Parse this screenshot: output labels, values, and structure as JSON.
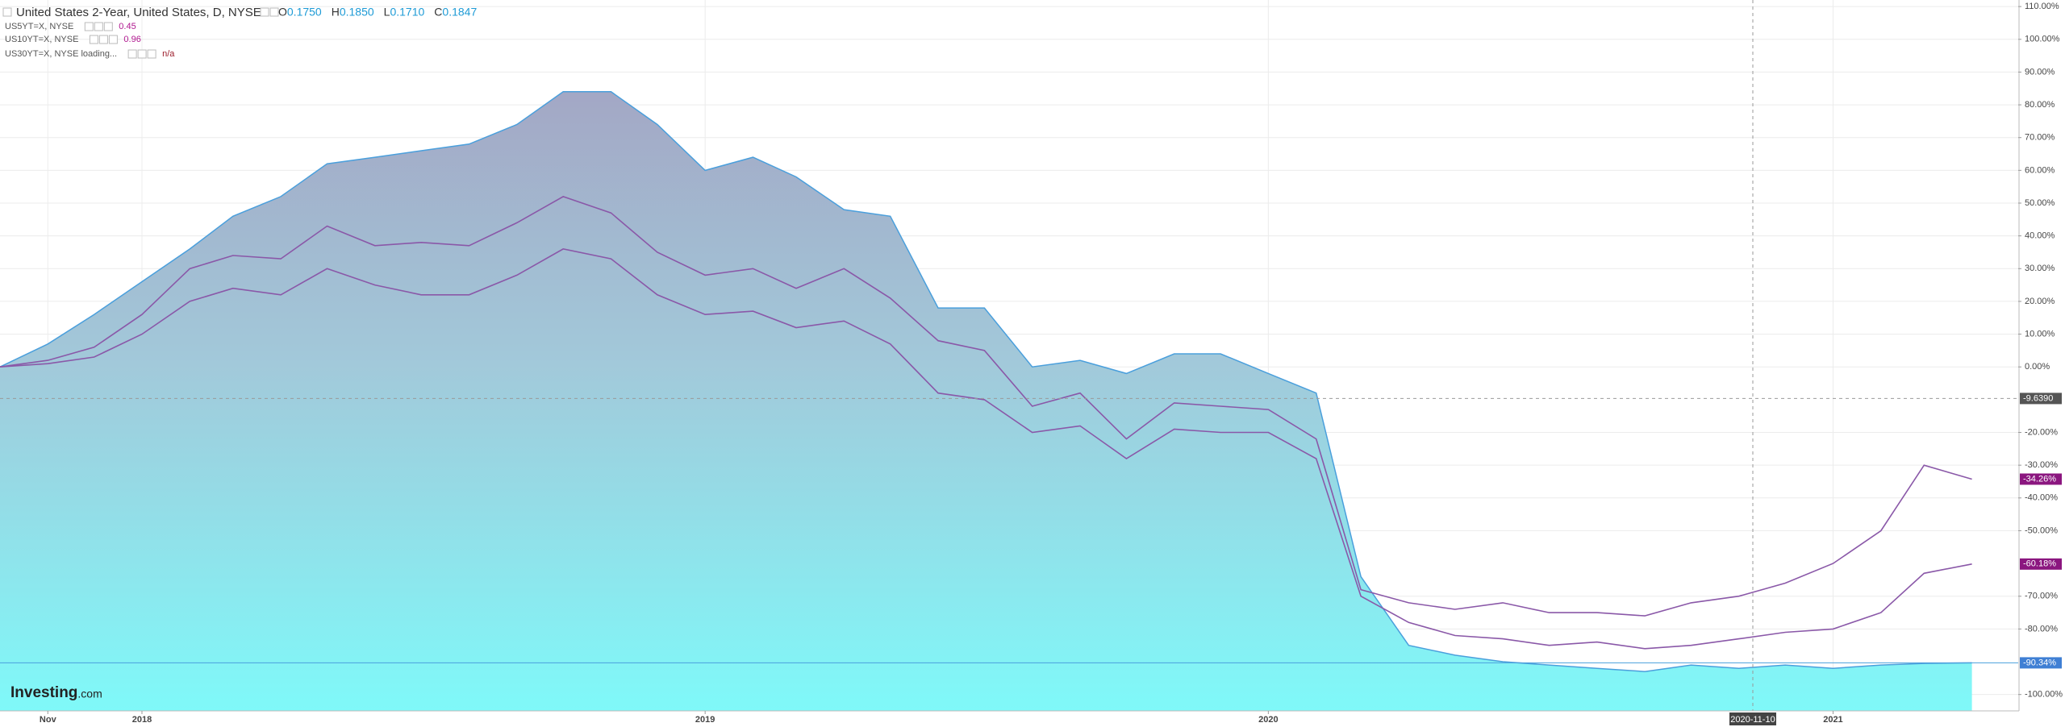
{
  "chart_data": {
    "type": "area",
    "ohlc": [
      {
        "key": "O",
        "value": "0.1750"
      },
      {
        "key": "H",
        "value": "0.1850"
      },
      {
        "key": "L",
        "value": "0.1710"
      },
      {
        "key": "C",
        "value": "0.1847"
      }
    ],
    "x": [
      "2017-10",
      "2017-11",
      "2017-12",
      "2018-01",
      "2018-02",
      "2018-03",
      "2018-04",
      "2018-05",
      "2018-06",
      "2018-07",
      "2018-08",
      "2018-09",
      "2018-10",
      "2018-11",
      "2018-12",
      "2019-01",
      "2019-02",
      "2019-03",
      "2019-04",
      "2019-05",
      "2019-06",
      "2019-07",
      "2019-08",
      "2019-09",
      "2019-10",
      "2019-11",
      "2019-12",
      "2020-01",
      "2020-02",
      "2020-03",
      "2020-04",
      "2020-05",
      "2020-06",
      "2020-07",
      "2020-08",
      "2020-09",
      "2020-10",
      "2020-11",
      "2020-12",
      "2021-01",
      "2021-02",
      "2021-03",
      "2021-04"
    ],
    "xlim": [
      "2017-10",
      "2021-05"
    ],
    "xticks": [
      {
        "value": "2017-11",
        "label": "Nov"
      },
      {
        "value": "2018-01",
        "label": "2018"
      },
      {
        "value": "2019-01",
        "label": "2019"
      },
      {
        "value": "2020-01",
        "label": "2020"
      },
      {
        "value": "2021-01",
        "label": "2021"
      }
    ],
    "ylim": [
      -105,
      112
    ],
    "yticks": [
      {
        "value": 110,
        "label": "110.00%"
      },
      {
        "value": 100,
        "label": "100.00%"
      },
      {
        "value": 90,
        "label": "90.00%"
      },
      {
        "value": 80,
        "label": "80.00%"
      },
      {
        "value": 70,
        "label": "70.00%"
      },
      {
        "value": 60,
        "label": "60.00%"
      },
      {
        "value": 50,
        "label": "50.00%"
      },
      {
        "value": 40,
        "label": "40.00%"
      },
      {
        "value": 30,
        "label": "30.00%"
      },
      {
        "value": 20,
        "label": "20.00%"
      },
      {
        "value": 10,
        "label": "10.00%"
      },
      {
        "value": 0,
        "label": "0.00%"
      },
      {
        "value": -20,
        "label": "-20.00%"
      },
      {
        "value": -30,
        "label": "-30.00%"
      },
      {
        "value": -40,
        "label": "-40.00%"
      },
      {
        "value": -50,
        "label": "-50.00%"
      },
      {
        "value": -70,
        "label": "-70.00%"
      },
      {
        "value": -80,
        "label": "-80.00%"
      },
      {
        "value": -100,
        "label": "-100.00%"
      }
    ],
    "grid": true,
    "series": [
      {
        "name": "United States 2-Year, United States, D, NYSE",
        "style": "area",
        "color": "#4a9fdc",
        "label_color": "#3f7fd4",
        "last_label": "-90.34%",
        "values": [
          0,
          7,
          16,
          26,
          36,
          46,
          52,
          62,
          64,
          66,
          68,
          74,
          84,
          84,
          74,
          60,
          64,
          58,
          48,
          46,
          18,
          18,
          0,
          2,
          -2,
          4,
          4,
          -2,
          -8,
          -64,
          -85,
          -88,
          -90,
          -91,
          -92,
          -93,
          -91,
          -92,
          -91,
          -92,
          -91,
          -90.5,
          -90.34
        ]
      },
      {
        "name": "US5YT=X, NYSE",
        "style": "line",
        "color": "#8a58a8",
        "label_color": "#8b167f",
        "legend_value": "0.45",
        "last_label": "-60.18%",
        "values": [
          0,
          1,
          3,
          10,
          20,
          24,
          22,
          30,
          25,
          22,
          22,
          28,
          36,
          33,
          22,
          16,
          17,
          12,
          14,
          7,
          -8,
          -10,
          -20,
          -18,
          -28,
          -19,
          -20,
          -20,
          -28,
          -70,
          -78,
          -82,
          -83,
          -85,
          -84,
          -86,
          -85,
          -83,
          -81,
          -80,
          -75,
          -63,
          -60.18
        ]
      },
      {
        "name": "US10YT=X, NYSE",
        "style": "line",
        "color": "#8a58a8",
        "label_color": "#8b167f",
        "legend_value": "0.96",
        "last_label": "-34.26%",
        "values": [
          0,
          2,
          6,
          16,
          30,
          34,
          33,
          43,
          37,
          38,
          37,
          44,
          52,
          47,
          35,
          28,
          30,
          24,
          30,
          21,
          8,
          5,
          -12,
          -8,
          -22,
          -11,
          -12,
          -13,
          -22,
          -68,
          -72,
          -74,
          -72,
          -75,
          -75,
          -76,
          -72,
          -70,
          -66,
          -60,
          -50,
          -30,
          -34.26
        ]
      }
    ],
    "pending_series": {
      "name": "US30YT=X, NYSE loading...",
      "legend_value": "n/a"
    },
    "crosshair": {
      "x": "2020-11-10",
      "y": {
        "value": -9.639,
        "label": "-9.6390"
      }
    },
    "watermark": [
      "Investing",
      ".com"
    ]
  }
}
